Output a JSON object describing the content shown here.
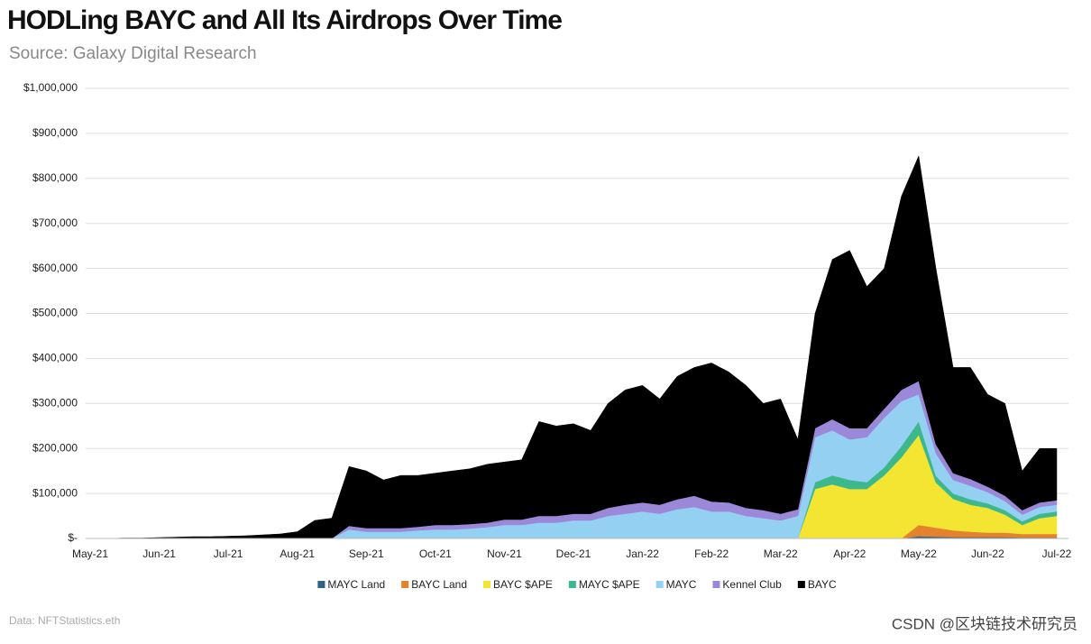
{
  "chart_data": {
    "type": "stacked-area",
    "title": "HODLing BAYC and All Its Airdrops Over Time",
    "subtitle": "Source: Galaxy Digital Research",
    "source_note": "Data: NFTStatistics.eth",
    "watermark": "CSDN @区块链技术研究员",
    "categories": [
      "May-21",
      null,
      null,
      null,
      "Jun-21",
      null,
      null,
      null,
      "Jul-21",
      null,
      null,
      null,
      "Aug-21",
      null,
      null,
      null,
      "Sep-21",
      null,
      null,
      null,
      "Oct-21",
      null,
      null,
      null,
      "Nov-21",
      null,
      null,
      null,
      "Dec-21",
      null,
      null,
      null,
      "Jan-22",
      null,
      null,
      null,
      "Feb-22",
      null,
      null,
      null,
      "Mar-22",
      null,
      null,
      null,
      "Apr-22",
      null,
      null,
      null,
      "May-22",
      null,
      null,
      null,
      "Jun-22",
      null,
      null,
      null,
      "Jul-22"
    ],
    "ylim": [
      0,
      1000000
    ],
    "yticks": [
      {
        "value": 0,
        "label": "$-"
      },
      {
        "value": 100000,
        "label": "$100,000"
      },
      {
        "value": 200000,
        "label": "$200,000"
      },
      {
        "value": 300000,
        "label": "$300,000"
      },
      {
        "value": 400000,
        "label": "$400,000"
      },
      {
        "value": 500000,
        "label": "$500,000"
      },
      {
        "value": 600000,
        "label": "$600,000"
      },
      {
        "value": 700000,
        "label": "$700,000"
      },
      {
        "value": 800000,
        "label": "$800,000"
      },
      {
        "value": 900000,
        "label": "$900,000"
      },
      {
        "value": 1000000,
        "label": "$1,000,000"
      }
    ],
    "grid": true,
    "legend": "bottom",
    "series": [
      {
        "name": "MAYC Land",
        "color": "#2f6283",
        "values": [
          0,
          0,
          0,
          0,
          0,
          0,
          0,
          0,
          0,
          0,
          0,
          0,
          0,
          0,
          0,
          0,
          0,
          0,
          0,
          0,
          0,
          0,
          0,
          0,
          0,
          0,
          0,
          0,
          0,
          0,
          0,
          0,
          0,
          0,
          0,
          0,
          0,
          0,
          0,
          0,
          0,
          0,
          0,
          0,
          0,
          0,
          0,
          0,
          5000,
          4000,
          3000,
          3000,
          3000,
          3000,
          2000,
          2000,
          2000
        ]
      },
      {
        "name": "BAYC Land",
        "color": "#e5822e",
        "values": [
          0,
          0,
          0,
          0,
          0,
          0,
          0,
          0,
          0,
          0,
          0,
          0,
          0,
          0,
          0,
          0,
          0,
          0,
          0,
          0,
          0,
          0,
          0,
          0,
          0,
          0,
          0,
          0,
          0,
          0,
          0,
          0,
          0,
          0,
          0,
          0,
          0,
          0,
          0,
          0,
          0,
          0,
          0,
          0,
          0,
          0,
          0,
          0,
          25000,
          20000,
          15000,
          12000,
          10000,
          10000,
          8000,
          8000,
          8000
        ]
      },
      {
        "name": "BAYC $APE",
        "color": "#f3e531",
        "values": [
          0,
          0,
          0,
          0,
          0,
          0,
          0,
          0,
          0,
          0,
          0,
          0,
          0,
          0,
          0,
          0,
          0,
          0,
          0,
          0,
          0,
          0,
          0,
          0,
          0,
          0,
          0,
          0,
          0,
          0,
          0,
          0,
          0,
          0,
          0,
          0,
          0,
          0,
          0,
          0,
          0,
          0,
          110000,
          120000,
          110000,
          110000,
          140000,
          180000,
          200000,
          100000,
          70000,
          60000,
          55000,
          40000,
          20000,
          35000,
          40000
        ]
      },
      {
        "name": "MAYC $APE",
        "color": "#3db88c",
        "values": [
          0,
          0,
          0,
          0,
          0,
          0,
          0,
          0,
          0,
          0,
          0,
          0,
          0,
          0,
          0,
          0,
          0,
          0,
          0,
          0,
          0,
          0,
          0,
          0,
          0,
          0,
          0,
          0,
          0,
          0,
          0,
          0,
          0,
          0,
          0,
          0,
          0,
          0,
          0,
          0,
          0,
          0,
          15000,
          20000,
          20000,
          15000,
          18000,
          25000,
          30000,
          15000,
          12000,
          12000,
          10000,
          10000,
          8000,
          10000,
          10000
        ]
      },
      {
        "name": "MAYC",
        "color": "#94d0f2",
        "values": [
          0,
          0,
          0,
          0,
          0,
          0,
          0,
          0,
          0,
          0,
          0,
          0,
          0,
          0,
          0,
          20000,
          15000,
          15000,
          15000,
          18000,
          20000,
          20000,
          22000,
          25000,
          30000,
          30000,
          35000,
          35000,
          40000,
          40000,
          50000,
          55000,
          60000,
          55000,
          65000,
          70000,
          60000,
          60000,
          50000,
          45000,
          40000,
          50000,
          100000,
          100000,
          90000,
          100000,
          110000,
          100000,
          60000,
          50000,
          30000,
          30000,
          25000,
          20000,
          15000,
          15000,
          15000
        ]
      },
      {
        "name": "Kennel Club",
        "color": "#9c88d8",
        "values": [
          0,
          0,
          0,
          0,
          0,
          0,
          0,
          0,
          0,
          0,
          0,
          0,
          0,
          0,
          0,
          8000,
          8000,
          8000,
          8000,
          8000,
          10000,
          10000,
          10000,
          10000,
          12000,
          12000,
          15000,
          15000,
          15000,
          15000,
          18000,
          20000,
          20000,
          20000,
          22000,
          25000,
          22000,
          20000,
          18000,
          18000,
          15000,
          15000,
          20000,
          25000,
          25000,
          20000,
          20000,
          25000,
          30000,
          20000,
          15000,
          15000,
          12000,
          12000,
          10000,
          10000,
          10000
        ]
      },
      {
        "name": "BAYC",
        "color": "#000000",
        "values": [
          0,
          0,
          1000,
          1000,
          2000,
          3000,
          4000,
          4000,
          5000,
          6000,
          8000,
          10000,
          15000,
          40000,
          45000,
          132000,
          127000,
          107000,
          117000,
          114000,
          115000,
          120000,
          123000,
          130000,
          128000,
          133000,
          210000,
          200000,
          200000,
          185000,
          232000,
          255000,
          260000,
          235000,
          273000,
          285000,
          308000,
          290000,
          272000,
          237000,
          255000,
          155000,
          255000,
          355000,
          395000,
          315000,
          312000,
          430000,
          500000,
          391000,
          235000,
          248000,
          205000,
          205000,
          87000,
          120000,
          115000
        ]
      }
    ]
  }
}
